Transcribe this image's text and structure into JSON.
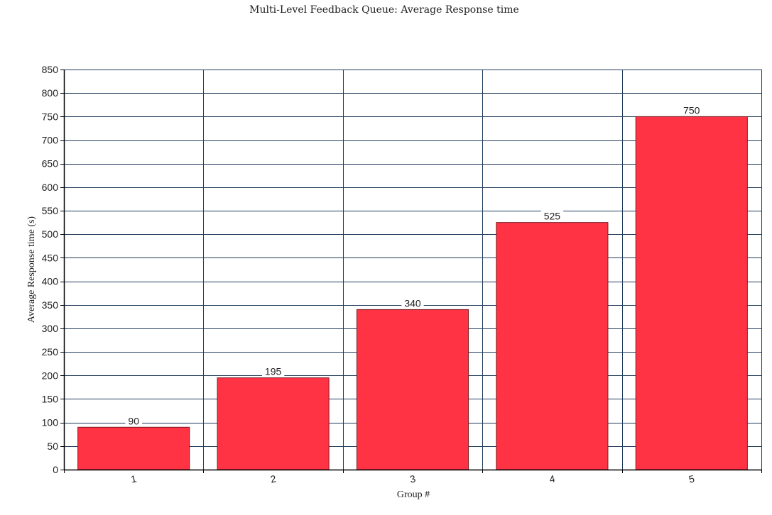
{
  "chart_data": {
    "type": "bar",
    "title": "Multi-Level Feedback Queue: Average Response time",
    "xlabel": "Group #",
    "ylabel": "Average Response time (s)",
    "categories": [
      "1",
      "2",
      "3",
      "4",
      "5"
    ],
    "values": [
      90,
      195,
      340,
      525,
      750
    ],
    "ylim": [
      0,
      850
    ],
    "yticks": [
      0,
      50,
      100,
      150,
      200,
      250,
      300,
      350,
      400,
      450,
      500,
      550,
      600,
      650,
      700,
      750,
      800,
      850
    ],
    "grid": true,
    "legend": "none",
    "colors": {
      "bar": "#ff3344",
      "bar_edge": "#7a1a22",
      "grid": "#1f3a5a",
      "axis": "#000000"
    }
  }
}
